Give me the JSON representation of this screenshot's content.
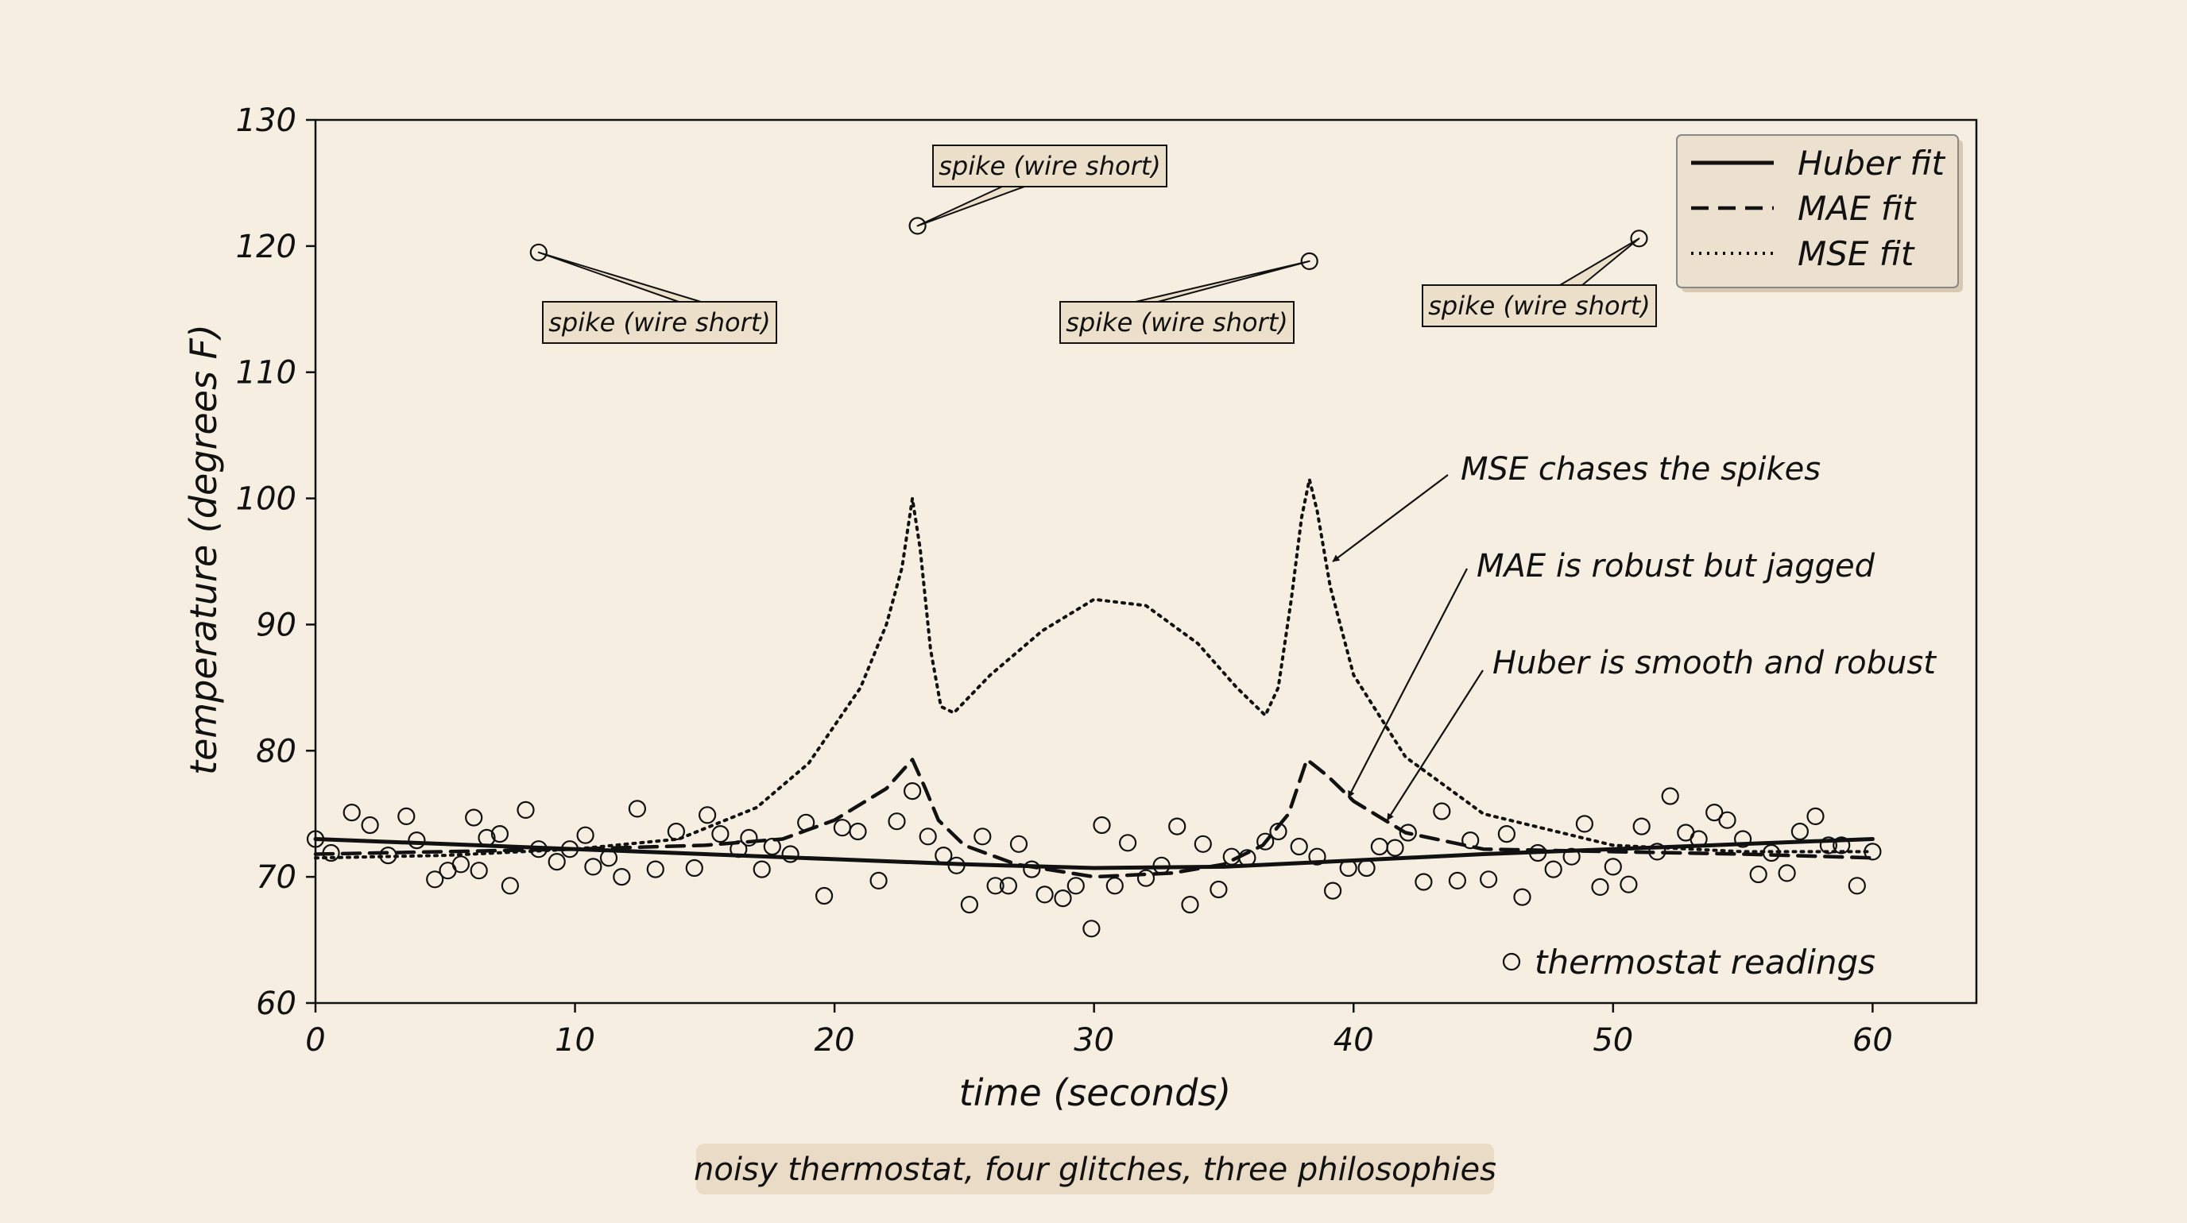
{
  "chart_data": {
    "type": "scatter",
    "xlabel": "time (seconds)",
    "ylabel": "temperature (degrees F)",
    "xlim": [
      0,
      64
    ],
    "ylim": [
      60,
      130
    ],
    "xticks": [
      0,
      10,
      20,
      30,
      40,
      50,
      60
    ],
    "yticks": [
      60,
      70,
      80,
      90,
      100,
      110,
      120,
      130
    ],
    "grid": false,
    "legend_position": "top-right",
    "caption": "noisy thermostat, four glitches, three philosophies",
    "scatter_legend_label": "thermostat readings",
    "readings": {
      "name": "thermostat readings",
      "x": [
        0.0,
        0.6,
        1.4,
        2.1,
        2.8,
        3.5,
        3.9,
        4.6,
        5.1,
        5.6,
        6.1,
        6.3,
        6.6,
        7.1,
        7.5,
        8.1,
        8.6,
        9.3,
        9.8,
        10.4,
        10.7,
        11.3,
        11.8,
        12.4,
        13.1,
        13.9,
        14.6,
        15.1,
        15.6,
        16.3,
        16.7,
        17.2,
        17.6,
        18.3,
        18.9,
        19.6,
        20.3,
        20.9,
        21.7,
        22.4,
        23.0,
        23.6,
        24.2,
        24.7,
        25.2,
        25.7,
        26.2,
        26.7,
        27.1,
        27.6,
        28.1,
        28.8,
        29.3,
        29.9,
        30.3,
        30.8,
        31.3,
        32.0,
        32.6,
        33.2,
        33.7,
        34.2,
        34.8,
        35.3,
        35.9,
        36.6,
        37.1,
        37.9,
        38.6,
        39.2,
        39.8,
        40.5,
        41.0,
        41.6,
        42.1,
        42.7,
        43.4,
        44.0,
        44.5,
        45.2,
        45.9,
        46.5,
        47.1,
        47.7,
        48.4,
        48.9,
        49.5,
        50.0,
        50.6,
        51.1,
        51.7,
        52.2,
        52.8,
        53.3,
        53.9,
        54.4,
        55.0,
        55.6,
        56.1,
        56.7,
        57.2,
        57.8,
        58.3,
        58.8,
        59.4,
        60.0,
        8.6,
        23.2,
        38.3,
        51.0
      ],
      "y": [
        73.0,
        71.9,
        75.1,
        74.1,
        71.7,
        74.8,
        72.9,
        69.8,
        70.5,
        71.0,
        74.7,
        70.5,
        73.1,
        73.4,
        69.3,
        75.3,
        72.2,
        71.2,
        72.2,
        73.3,
        70.8,
        71.5,
        70.0,
        75.4,
        70.6,
        73.6,
        70.7,
        74.9,
        73.4,
        72.2,
        73.1,
        70.6,
        72.4,
        71.8,
        74.3,
        68.5,
        73.9,
        73.6,
        69.7,
        74.4,
        76.8,
        73.2,
        71.7,
        70.9,
        67.8,
        73.2,
        69.3,
        69.3,
        72.6,
        70.6,
        68.6,
        68.3,
        69.3,
        65.9,
        74.1,
        69.3,
        72.7,
        69.9,
        70.9,
        74.0,
        67.8,
        72.6,
        69.0,
        71.6,
        71.5,
        72.8,
        73.6,
        72.4,
        71.6,
        68.9,
        70.7,
        70.7,
        72.4,
        72.3,
        73.5,
        69.6,
        75.2,
        69.7,
        72.9,
        69.8,
        73.4,
        68.4,
        71.9,
        70.6,
        71.6,
        74.2,
        69.2,
        70.8,
        69.4,
        74.0,
        72.0,
        76.4,
        73.5,
        73.0,
        75.1,
        74.5,
        73.0,
        70.2,
        71.9,
        70.3,
        73.6,
        74.8,
        72.5,
        72.5,
        69.3,
        72.0,
        119.5,
        121.6,
        118.8,
        120.6
      ]
    },
    "series": [
      {
        "name": "Huber fit",
        "style": "solid",
        "x": [
          0,
          5,
          10,
          15,
          20,
          25,
          30,
          35,
          40,
          45,
          50,
          55,
          60
        ],
        "y": [
          73.0,
          72.6,
          72.2,
          71.8,
          71.4,
          71.0,
          70.7,
          70.8,
          71.3,
          71.8,
          72.2,
          72.6,
          73.0
        ]
      },
      {
        "name": "MAE fit",
        "style": "dashed",
        "x": [
          0,
          5,
          10,
          15,
          18,
          20,
          22,
          23.0,
          23.5,
          24,
          25,
          27,
          30,
          33,
          35,
          36.5,
          37.5,
          38.2,
          39,
          40,
          42,
          45,
          50,
          55,
          60
        ],
        "y": [
          71.8,
          72.0,
          72.2,
          72.5,
          73.0,
          74.5,
          77.0,
          79.3,
          77.0,
          74.5,
          72.5,
          71.0,
          70.0,
          70.3,
          71.0,
          72.5,
          75.0,
          79.3,
          78.0,
          76.0,
          73.5,
          72.2,
          72.0,
          71.8,
          71.5
        ]
      },
      {
        "name": "MSE fit",
        "style": "dotted",
        "x": [
          0,
          5,
          10,
          14,
          17,
          19,
          21,
          22,
          22.6,
          23.0,
          23.3,
          23.7,
          24.1,
          24.6,
          26,
          28,
          30,
          32,
          34,
          35.5,
          36.6,
          37.1,
          37.6,
          38.0,
          38.3,
          38.6,
          39.1,
          40,
          42,
          45,
          50,
          55,
          60
        ],
        "y": [
          71.5,
          71.7,
          72.2,
          73.0,
          75.5,
          79.0,
          85.0,
          90.0,
          94.5,
          100.0,
          96.0,
          88.0,
          83.5,
          83.0,
          86.0,
          89.5,
          92.0,
          91.5,
          88.5,
          85.0,
          82.8,
          85.0,
          92.0,
          98.5,
          101.5,
          99.0,
          93.0,
          86.0,
          79.5,
          75.0,
          72.5,
          72.0,
          72.0
        ]
      }
    ],
    "callouts": [
      {
        "text": "spike (wire short)",
        "point": [
          8.6,
          119.5
        ]
      },
      {
        "text": "spike (wire short)",
        "point": [
          23.2,
          121.6
        ]
      },
      {
        "text": "spike (wire short)",
        "point": [
          38.3,
          118.8
        ]
      },
      {
        "text": "spike (wire short)",
        "point": [
          51.0,
          120.6
        ]
      }
    ],
    "annotations": [
      {
        "text": "MSE chases the spikes",
        "arrow_to": [
          39.2,
          95.0
        ]
      },
      {
        "text": "MAE is robust but jagged",
        "arrow_to": [
          39.8,
          76.3
        ]
      },
      {
        "text": "Huber is smooth and robust",
        "arrow_to": [
          41.3,
          74.5
        ]
      }
    ]
  }
}
